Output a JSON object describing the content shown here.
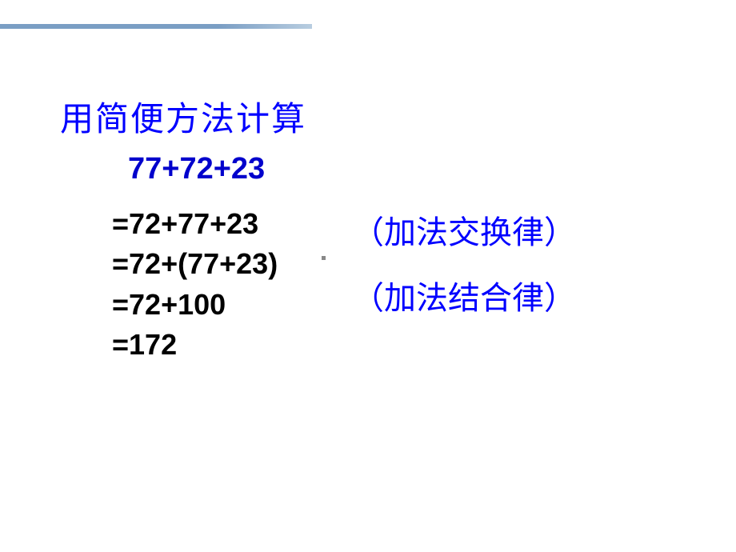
{
  "title": "用简便方法计算",
  "expression": "77+72+23",
  "steps": {
    "step1": "=72+77+23",
    "step2": "=72+(77+23)",
    "step3": "=72+100",
    "step4": "=172"
  },
  "laws": {
    "law1": "（加法交换律）",
    "law2": "（加法结合律）"
  },
  "colors": {
    "title_color": "#0000ff",
    "expression_color": "#0000cc",
    "steps_color": "#000000",
    "laws_color": "#0000ff",
    "background": "#ffffff",
    "border_gradient_start": "#7a9ec4",
    "border_gradient_end": "#b8cde0"
  },
  "typography": {
    "title_fontsize": 42,
    "expression_fontsize": 38,
    "steps_fontsize": 36,
    "laws_fontsize": 40
  }
}
